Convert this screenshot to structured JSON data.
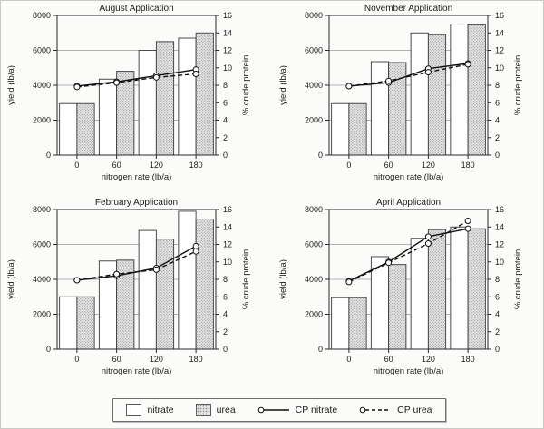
{
  "figure": {
    "description": "Four bar-and-line charts of forage yield and crude protein versus nitrogen rate for four application timings"
  },
  "style": {
    "nitrate_fill": "#ffffff",
    "urea_fill": "#e4e4e4",
    "urea_dot": "#8d8d8d",
    "line_color": "#111111",
    "grid_color": "#9a9a9a",
    "axis_color": "#2a2a2a",
    "bar_stroke": "#3a3a3a"
  },
  "legend": {
    "items": [
      {
        "label": "nitrate",
        "type": "bar",
        "fill": "white"
      },
      {
        "label": "urea",
        "type": "bar",
        "fill": "dotted-gray"
      },
      {
        "label": "CP nitrate",
        "type": "line",
        "style": "solid",
        "marker": "circle"
      },
      {
        "label": "CP urea",
        "type": "line",
        "style": "dashed",
        "marker": "circle"
      }
    ]
  },
  "chart_data": [
    {
      "type": "bar",
      "title": "August Application",
      "categories": [
        "0",
        "60",
        "120",
        "180"
      ],
      "xlabel": "nitrogen rate (lb/a)",
      "ylabel_left": "yield (lb/a)",
      "ylabel_right": "% crude protein",
      "ylim_left": [
        0,
        8000
      ],
      "yticks_left": [
        0,
        2000,
        4000,
        6000,
        8000
      ],
      "ylim_right": [
        0,
        16
      ],
      "yticks_right": [
        0,
        2,
        4,
        6,
        8,
        10,
        12,
        14,
        16
      ],
      "grid": true,
      "bar_series": [
        {
          "name": "nitrate",
          "values": [
            2950,
            4350,
            6000,
            6700
          ]
        },
        {
          "name": "urea",
          "values": [
            2950,
            4800,
            6500,
            7000
          ]
        }
      ],
      "line_series": [
        {
          "name": "CP nitrate",
          "style": "solid",
          "values": [
            7.9,
            8.4,
            9.1,
            9.8
          ]
        },
        {
          "name": "CP urea",
          "style": "dashed",
          "values": [
            7.8,
            8.3,
            8.9,
            9.3
          ]
        }
      ]
    },
    {
      "type": "bar",
      "title": "November Application",
      "categories": [
        "0",
        "60",
        "120",
        "180"
      ],
      "xlabel": "nitrogen rate (lb/a)",
      "ylabel_left": "yield (lb/a)",
      "ylabel_right": "% crude protein",
      "ylim_left": [
        0,
        8000
      ],
      "yticks_left": [
        0,
        2000,
        4000,
        6000,
        8000
      ],
      "ylim_right": [
        0,
        16
      ],
      "yticks_right": [
        0,
        2,
        4,
        6,
        8,
        10,
        12,
        14,
        16
      ],
      "grid": true,
      "bar_series": [
        {
          "name": "nitrate",
          "values": [
            2950,
            5350,
            7000,
            7500
          ]
        },
        {
          "name": "urea",
          "values": [
            2950,
            5300,
            6900,
            7450
          ]
        }
      ],
      "line_series": [
        {
          "name": "CP nitrate",
          "style": "solid",
          "values": [
            7.9,
            8.3,
            9.9,
            10.5
          ]
        },
        {
          "name": "CP urea",
          "style": "dashed",
          "values": [
            7.9,
            8.5,
            9.5,
            10.4
          ]
        }
      ]
    },
    {
      "type": "bar",
      "title": "February Application",
      "categories": [
        "0",
        "60",
        "120",
        "180"
      ],
      "xlabel": "nitrogen rate (lb/a)",
      "ylabel_left": "yield (lb/a)",
      "ylabel_right": "% crude protein",
      "ylim_left": [
        0,
        8000
      ],
      "yticks_left": [
        0,
        2000,
        4000,
        6000,
        8000
      ],
      "ylim_right": [
        0,
        16
      ],
      "yticks_right": [
        0,
        2,
        4,
        6,
        8,
        10,
        12,
        14,
        16
      ],
      "grid": true,
      "bar_series": [
        {
          "name": "nitrate",
          "values": [
            3000,
            5050,
            6800,
            7900
          ]
        },
        {
          "name": "urea",
          "values": [
            3000,
            5100,
            6300,
            7450
          ]
        }
      ],
      "line_series": [
        {
          "name": "CP nitrate",
          "style": "solid",
          "values": [
            7.9,
            8.4,
            9.3,
            11.8
          ]
        },
        {
          "name": "CP urea",
          "style": "dashed",
          "values": [
            7.9,
            8.6,
            9.1,
            11.2
          ]
        }
      ]
    },
    {
      "type": "bar",
      "title": "April Application",
      "categories": [
        "0",
        "60",
        "120",
        "180"
      ],
      "xlabel": "nitrogen rate (lb/a)",
      "ylabel_left": "yield (lb/a)",
      "ylabel_right": "% crude protein",
      "ylim_left": [
        0,
        8000
      ],
      "yticks_left": [
        0,
        2000,
        4000,
        6000,
        8000
      ],
      "ylim_right": [
        0,
        16
      ],
      "yticks_right": [
        0,
        2,
        4,
        6,
        8,
        10,
        12,
        14,
        16
      ],
      "grid": true,
      "bar_series": [
        {
          "name": "nitrate",
          "values": [
            2950,
            5300,
            6350,
            7000
          ]
        },
        {
          "name": "urea",
          "values": [
            2950,
            4850,
            6850,
            6900
          ]
        }
      ],
      "line_series": [
        {
          "name": "CP nitrate",
          "style": "solid",
          "values": [
            7.8,
            10.0,
            12.9,
            13.8
          ]
        },
        {
          "name": "CP urea",
          "style": "dashed",
          "values": [
            7.7,
            9.9,
            12.1,
            14.7
          ]
        }
      ]
    }
  ]
}
